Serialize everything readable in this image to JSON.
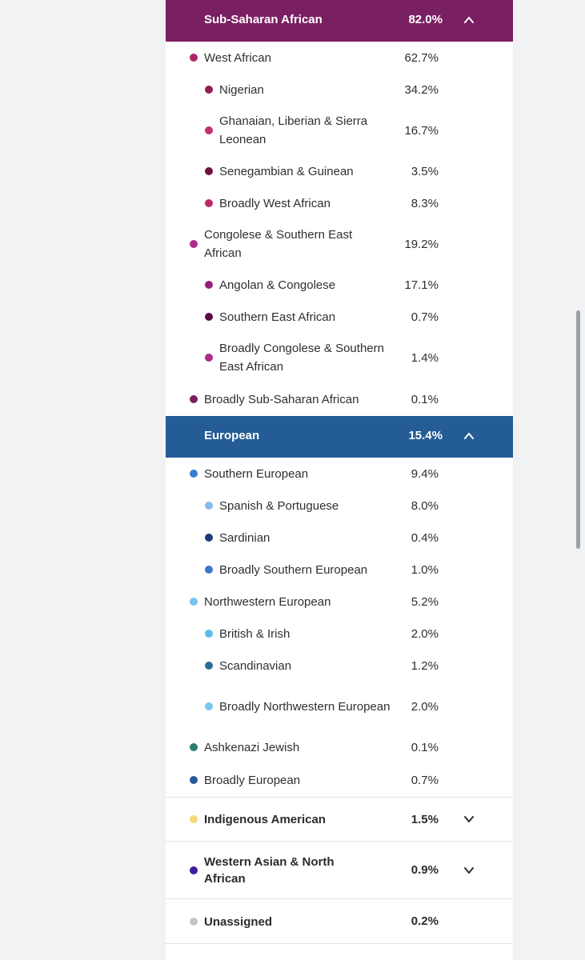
{
  "sub_saharan": {
    "name": "Sub-Saharan African",
    "pct": "82.0%",
    "color": "#7a1f61",
    "rows": [
      {
        "level": 1,
        "label": "West African",
        "pct": "62.7%",
        "color": "#b0256b"
      },
      {
        "level": 2,
        "label": "Nigerian",
        "pct": "34.2%",
        "color": "#8f1c55"
      },
      {
        "level": 2,
        "label": "Ghanaian, Liberian & Sierra Leonean",
        "pct": "16.7%",
        "color": "#c2306e"
      },
      {
        "level": 2,
        "label": "Senegambian & Guinean",
        "pct": "3.5%",
        "color": "#6e1340"
      },
      {
        "level": 2,
        "label": "Broadly West African",
        "pct": "8.3%",
        "color": "#b82a68"
      },
      {
        "level": 1,
        "label": "Congolese & Southern East African",
        "pct": "19.2%",
        "color": "#b02a8c"
      },
      {
        "level": 2,
        "label": "Angolan & Congolese",
        "pct": "17.1%",
        "color": "#961f7c"
      },
      {
        "level": 2,
        "label": "Southern East African",
        "pct": "0.7%",
        "color": "#5a0a44"
      },
      {
        "level": 2,
        "label": "Broadly Congolese & Southern East African",
        "pct": "1.4%",
        "color": "#b0288c"
      },
      {
        "level": 1,
        "label": "Broadly Sub-Saharan African",
        "pct": "0.1%",
        "color": "#7a1f61"
      }
    ]
  },
  "european": {
    "name": "European",
    "pct": "15.4%",
    "color": "#245c96",
    "rows": [
      {
        "level": 1,
        "label": "Southern European",
        "pct": "9.4%",
        "color": "#3a7bd5"
      },
      {
        "level": 2,
        "label": "Spanish & Portuguese",
        "pct": "8.0%",
        "color": "#8ab8ec"
      },
      {
        "level": 2,
        "label": "Sardinian",
        "pct": "0.4%",
        "color": "#1c3a78"
      },
      {
        "level": 2,
        "label": "Broadly Southern European",
        "pct": "1.0%",
        "color": "#3c76cc"
      },
      {
        "level": 1,
        "label": "Northwestern European",
        "pct": "5.2%",
        "color": "#76c2ec"
      },
      {
        "level": 2,
        "label": "British & Irish",
        "pct": "2.0%",
        "color": "#5cbde8"
      },
      {
        "level": 2,
        "label": "Scandinavian",
        "pct": "1.2%",
        "color": "#2a6c98"
      },
      {
        "level": 2,
        "label": "Broadly Northwestern European",
        "pct": "2.0%",
        "color": "#7cc6ec"
      },
      {
        "level": 1,
        "label": "Ashkenazi Jewish",
        "pct": "0.1%",
        "color": "#2a7c74"
      },
      {
        "level": 1,
        "label": "Broadly European",
        "pct": "0.7%",
        "color": "#255a96"
      }
    ]
  },
  "collapsed": [
    {
      "label": "Indigenous American",
      "pct": "1.5%",
      "color": "#f5d97a"
    },
    {
      "label": "Western Asian & North African",
      "pct": "0.9%",
      "color": "#3c1c9c"
    },
    {
      "label": "Unassigned",
      "pct": "0.2%",
      "color": "#c3c6ca"
    }
  ]
}
